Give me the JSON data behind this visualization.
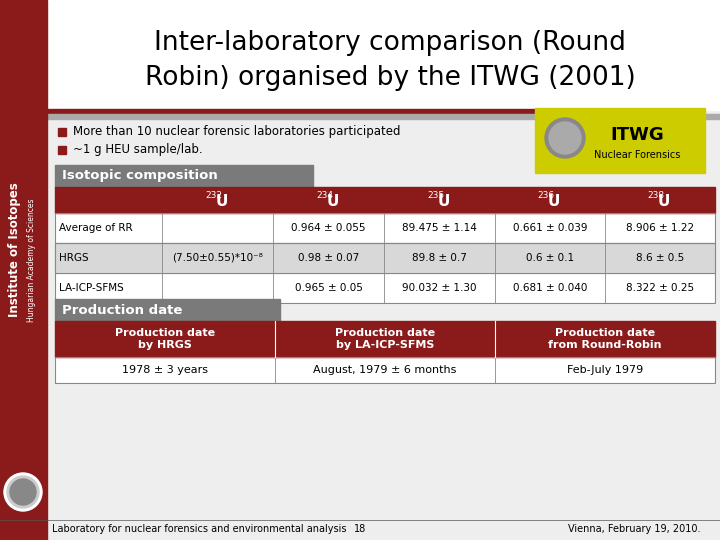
{
  "title_line1": "Inter-laboratory comparison (Round",
  "title_line2": "Robin) organised by the ITWG (2001)",
  "bullet1": "More than 10 nuclear forensic laboratories participated",
  "bullet2": "~1 g HEU sample/lab.",
  "section1_title": "Isotopic composition",
  "iso_mass": [
    "232",
    "234",
    "235",
    "236",
    "238"
  ],
  "iso_rows": [
    [
      "Average of RR",
      "",
      "0.964 ± 0.055",
      "89.475 ± 1.14",
      "0.661 ± 0.039",
      "8.906 ± 1.22"
    ],
    [
      "HRGS",
      "(7.50±0.55)*10⁻⁸",
      "0.98 ± 0.07",
      "89.8 ± 0.7",
      "0.6 ± 0.1",
      "8.6 ± 0.5"
    ],
    [
      "LA-ICP-SFMS",
      "",
      "0.965 ± 0.05",
      "90.032 ± 1.30",
      "0.681 ± 0.040",
      "8.322 ± 0.25"
    ]
  ],
  "section2_title": "Production date",
  "prod_headers": [
    "Production date\nby HRGS",
    "Production date\nby LA-ICP-SFMS",
    "Production date\nfrom Round-Robin"
  ],
  "prod_values": [
    "1978 ± 3 years",
    "August, 1979 ± 6 months",
    "Feb-July 1979"
  ],
  "footer_left": "Laboratory for nuclear forensics and environmental analysis",
  "footer_center": "18",
  "footer_right": "Vienna, February 19, 2010.",
  "bg_color": "#eeeeee",
  "dark_red": "#8B1A1A",
  "gray_header": "#7a7a7a",
  "left_bar_color": "#8B1A1A",
  "light_gray": "#d8d8d8",
  "table_header_red": "#8B1A1A",
  "table_border_color": "#888888",
  "white": "#ffffff",
  "title_bg": "#ffffff",
  "itwg_yellow": "#cccc00",
  "footer_line": "#555555"
}
